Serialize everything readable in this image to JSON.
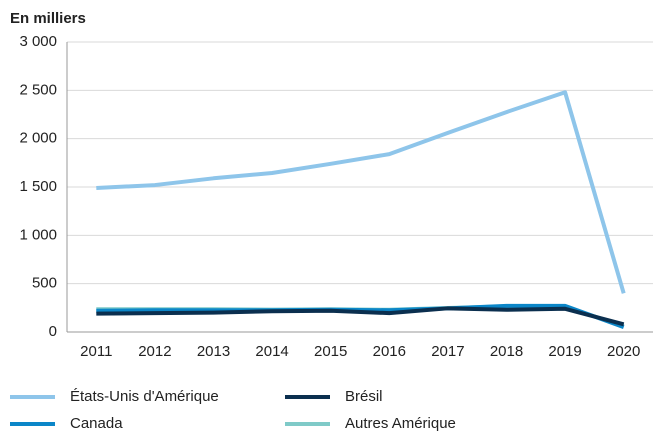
{
  "chart_data": {
    "type": "line",
    "title": "En milliers",
    "categories": [
      "2011",
      "2012",
      "2013",
      "2014",
      "2015",
      "2016",
      "2017",
      "2018",
      "2019",
      "2020"
    ],
    "series": [
      {
        "name": "États-Unis d'Amérique",
        "color": "#8ec5ea",
        "values": [
          1490,
          1520,
          1590,
          1645,
          1740,
          1840,
          2060,
          2275,
          2480,
          400
        ]
      },
      {
        "name": "Brésil",
        "color": "#0b2f4f",
        "values": [
          190,
          195,
          200,
          215,
          220,
          195,
          245,
          230,
          240,
          80
        ]
      },
      {
        "name": "Canada",
        "color": "#0b86c8",
        "values": [
          220,
          225,
          225,
          225,
          230,
          225,
          245,
          270,
          270,
          50
        ]
      },
      {
        "name": "Autres Amérique",
        "color": "#7fcac8",
        "values": [
          235,
          235,
          235,
          232,
          235,
          230,
          248,
          265,
          262,
          60
        ]
      }
    ],
    "ylim": [
      0,
      3000
    ],
    "yticks": [
      0,
      500,
      {
        "value": 1000,
        "label": "1 000"
      },
      {
        "value": 1500,
        "label": "1 500"
      },
      {
        "value": 2000,
        "label": "2 000"
      },
      {
        "value": 2500,
        "label": "2 500"
      },
      {
        "value": 3000,
        "label": "3 000"
      }
    ],
    "grid": true
  }
}
